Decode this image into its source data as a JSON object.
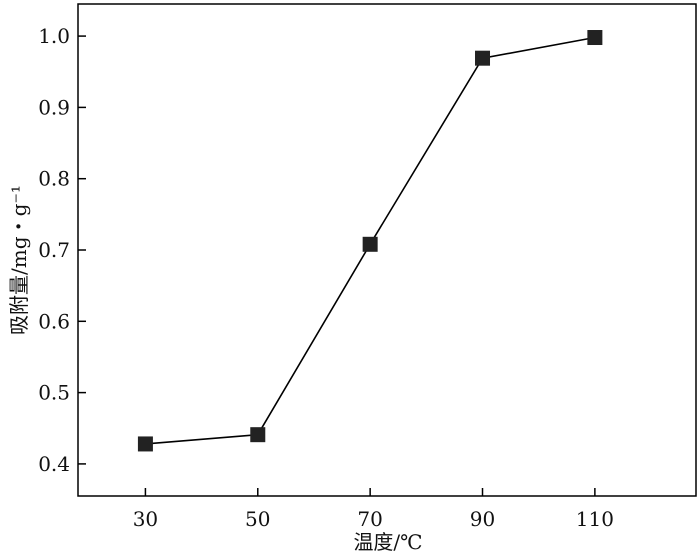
{
  "chart_data": {
    "type": "line",
    "xlabel": "温度/℃",
    "ylabel": "吸附量/mg・g⁻¹",
    "x": [
      30,
      50,
      70,
      90,
      110
    ],
    "series": [
      {
        "values": [
          0.428,
          0.441,
          0.708,
          0.969,
          0.998
        ]
      }
    ],
    "xlim": [
      18,
      128
    ],
    "ylim": [
      0.355,
      1.045
    ],
    "xticks": [
      "30",
      "50",
      "70",
      "90",
      "110"
    ],
    "yticks": [
      "0.4",
      "0.5",
      "0.6",
      "0.7",
      "0.8",
      "0.9",
      "1.0"
    ],
    "marker": "square",
    "grid": false,
    "colors": {
      "line": "#000000",
      "marker": "#222222",
      "axis": "#000000"
    }
  }
}
